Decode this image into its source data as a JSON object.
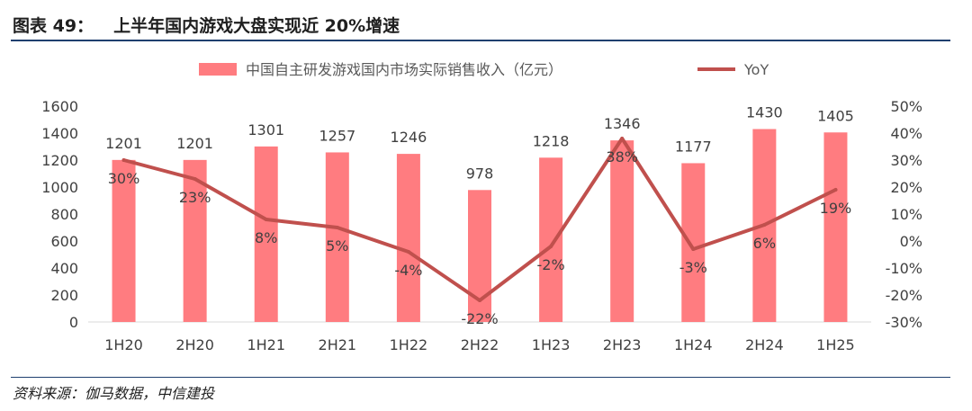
{
  "figure": {
    "label": "图表 49：",
    "title": "上半年国内游戏大盘实现近 20%增速",
    "source": "资料来源：伽马数据，中信建投"
  },
  "colors": {
    "bar": "#ff7c80",
    "line": "#c0504d",
    "rule": "#1f3f6f",
    "text": "#404040"
  },
  "chart_data": {
    "type": "bar",
    "categories": [
      "1H20",
      "2H20",
      "1H21",
      "2H21",
      "1H22",
      "2H22",
      "1H23",
      "2H23",
      "1H24",
      "2H24",
      "1H25"
    ],
    "series": [
      {
        "name": "中国自主研发游戏国内市场实际销售收入（亿元）",
        "type": "bar",
        "axis": "left",
        "values": [
          1201,
          1201,
          1301,
          1257,
          1246,
          978,
          1218,
          1346,
          1177,
          1430,
          1405
        ],
        "labels": [
          "1201",
          "1201",
          "1301",
          "1257",
          "1246",
          "978",
          "1218",
          "1346",
          "1177",
          "1430",
          "1405"
        ]
      },
      {
        "name": "YoY",
        "type": "line",
        "axis": "right",
        "values": [
          30,
          23,
          8,
          5,
          -4,
          -22,
          -2,
          38,
          -3,
          6,
          19
        ],
        "labels": [
          "30%",
          "23%",
          "8%",
          "5%",
          "-4%",
          "-22%",
          "-2%",
          "38%",
          "-3%",
          "6%",
          "19%"
        ]
      }
    ],
    "y_left": {
      "range": [
        0,
        1600
      ],
      "ticks": [
        0,
        200,
        400,
        600,
        800,
        1000,
        1200,
        1400,
        1600
      ],
      "tick_labels": [
        "0",
        "200",
        "400",
        "600",
        "800",
        "1000",
        "1200",
        "1400",
        "1600"
      ]
    },
    "y_right": {
      "range": [
        -30,
        50
      ],
      "ticks": [
        -30,
        -20,
        -10,
        0,
        10,
        20,
        30,
        40,
        50
      ],
      "tick_labels": [
        "-30%",
        "-20%",
        "-10%",
        "0%",
        "10%",
        "20%",
        "30%",
        "40%",
        "50%"
      ]
    },
    "grid": false,
    "legend": "top-center"
  }
}
